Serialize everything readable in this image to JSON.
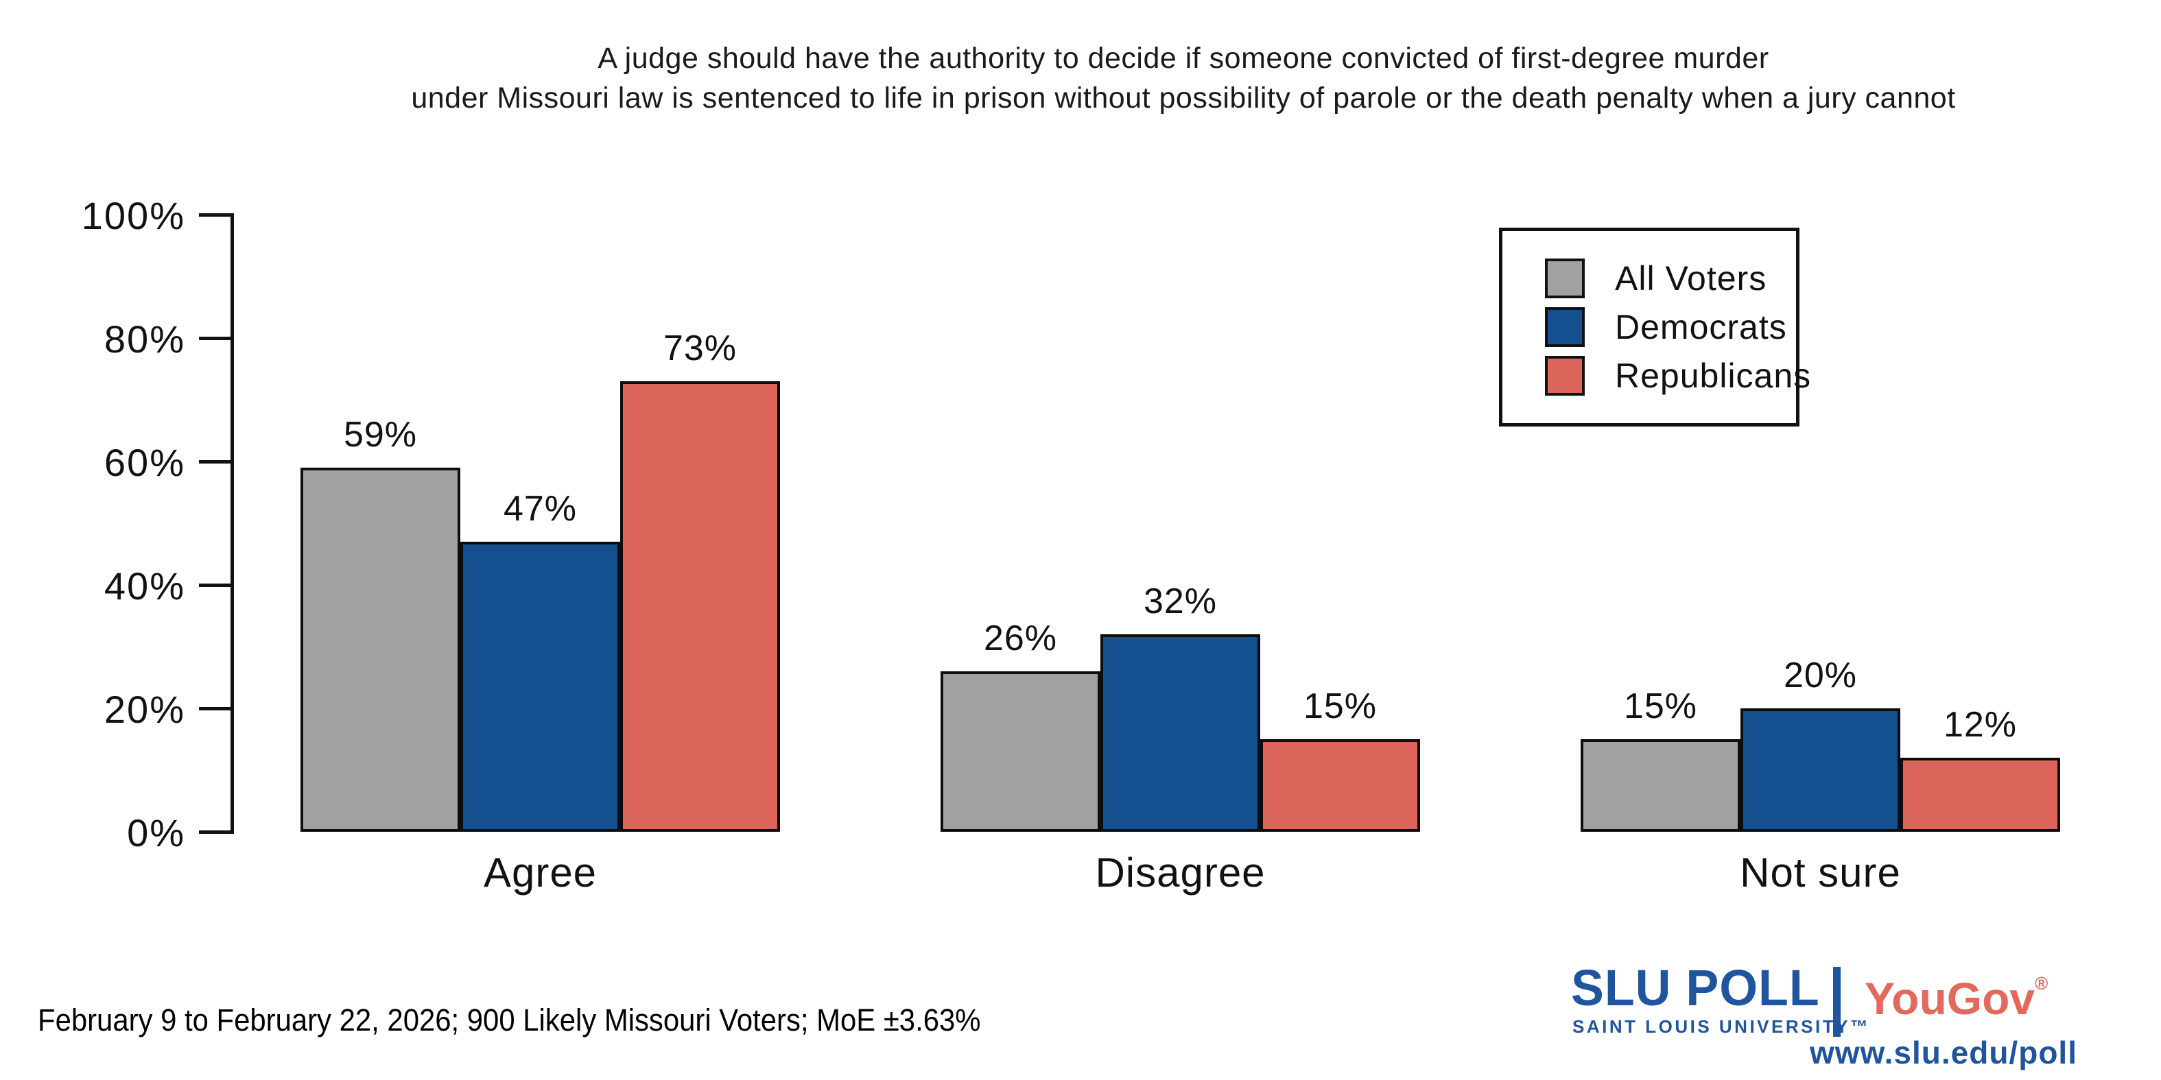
{
  "title": {
    "line1": "A judge should have the authority to decide if someone convicted of first-degree murder",
    "line2": "under Missouri law is sentenced to life in prison without possibility of parole or the death penalty when a jury cannot"
  },
  "chart_data": {
    "type": "bar",
    "categories": [
      "Agree",
      "Disagree",
      "Not sure"
    ],
    "series": [
      {
        "name": "All Voters",
        "color": "#A1A1A1",
        "values": [
          59,
          26,
          15
        ]
      },
      {
        "name": "Democrats",
        "color": "#14508F",
        "values": [
          47,
          32,
          20
        ]
      },
      {
        "name": "Republicans",
        "color": "#DB655A",
        "values": [
          73,
          15,
          12
        ]
      }
    ],
    "value_label_suffix": "%",
    "y_ticks": [
      0,
      20,
      40,
      60,
      80,
      100
    ],
    "y_tick_suffix": "%",
    "ylim": [
      0,
      100
    ],
    "grid": false,
    "legend_position": "upper right"
  },
  "footer": {
    "note": "February 9 to February 22, 2026; 900 Likely Missouri Voters; MoE ±3.63%"
  },
  "branding": {
    "slu_poll": "SLU POLL",
    "slu_subtitle": "SAINT LOUIS UNIVERSITY",
    "trademark": "™",
    "partner": "YouGov",
    "registered": "®",
    "url": "www.slu.edu/poll",
    "slu_blue": "#1F549E",
    "yougov_red": "#E2695C"
  }
}
